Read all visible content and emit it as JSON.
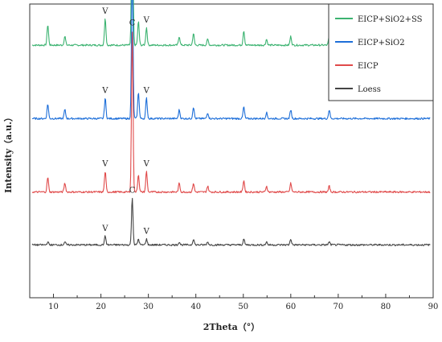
{
  "chart_data": {
    "type": "line",
    "title": "",
    "xlabel": "2Theta（°）",
    "ylabel": "Intensity（a.u.）",
    "xlim": [
      5,
      90
    ],
    "xticks": [
      "10",
      "20",
      "30",
      "40",
      "50",
      "60",
      "70",
      "80",
      "90"
    ],
    "y_ticks_shown": false,
    "grid": false,
    "legend_position": "top-right",
    "peaks": [
      {
        "label": "C",
        "x": 26.6,
        "description": "quartz main peak"
      },
      {
        "label": "V",
        "x": 20.9
      },
      {
        "label": "V",
        "x": 29.6
      }
    ],
    "series": [
      {
        "name": "EICP+SiO2+SS",
        "color": "#3cb371",
        "baseline": 0.86,
        "peaks": [
          [
            8.8,
            0.07
          ],
          [
            12.4,
            0.03
          ],
          [
            20.9,
            0.09
          ],
          [
            26.6,
            0.52
          ],
          [
            27.9,
            0.08
          ],
          [
            29.6,
            0.06
          ],
          [
            36.5,
            0.03
          ],
          [
            39.5,
            0.04
          ],
          [
            42.5,
            0.02
          ],
          [
            50.1,
            0.05
          ],
          [
            54.9,
            0.02
          ],
          [
            60.0,
            0.03
          ],
          [
            68.1,
            0.03
          ]
        ]
      },
      {
        "name": "EICP+SiO2",
        "color": "#1e6fd9",
        "baseline": 0.61,
        "peaks": [
          [
            8.8,
            0.05
          ],
          [
            12.4,
            0.03
          ],
          [
            20.9,
            0.07
          ],
          [
            26.6,
            0.52
          ],
          [
            27.9,
            0.09
          ],
          [
            29.6,
            0.07
          ],
          [
            36.5,
            0.03
          ],
          [
            39.5,
            0.04
          ],
          [
            42.5,
            0.02
          ],
          [
            50.1,
            0.04
          ],
          [
            54.9,
            0.02
          ],
          [
            60.0,
            0.03
          ],
          [
            68.1,
            0.03
          ]
        ]
      },
      {
        "name": "EICP",
        "color": "#e04a4a",
        "baseline": 0.36,
        "peaks": [
          [
            8.8,
            0.05
          ],
          [
            12.4,
            0.03
          ],
          [
            20.9,
            0.07
          ],
          [
            26.6,
            0.55
          ],
          [
            27.9,
            0.06
          ],
          [
            29.6,
            0.07
          ],
          [
            36.5,
            0.03
          ],
          [
            39.5,
            0.03
          ],
          [
            42.5,
            0.02
          ],
          [
            50.1,
            0.04
          ],
          [
            54.9,
            0.02
          ],
          [
            60.0,
            0.03
          ],
          [
            68.1,
            0.02
          ]
        ]
      },
      {
        "name": "Loess",
        "color": "#444444",
        "baseline": 0.18,
        "peaks": [
          [
            8.8,
            0.01
          ],
          [
            12.4,
            0.01
          ],
          [
            20.9,
            0.03
          ],
          [
            26.6,
            0.16
          ],
          [
            27.9,
            0.02
          ],
          [
            29.6,
            0.02
          ],
          [
            36.5,
            0.01
          ],
          [
            39.5,
            0.02
          ],
          [
            42.5,
            0.01
          ],
          [
            50.1,
            0.02
          ],
          [
            54.9,
            0.01
          ],
          [
            60.0,
            0.02
          ],
          [
            68.1,
            0.01
          ]
        ]
      }
    ]
  }
}
